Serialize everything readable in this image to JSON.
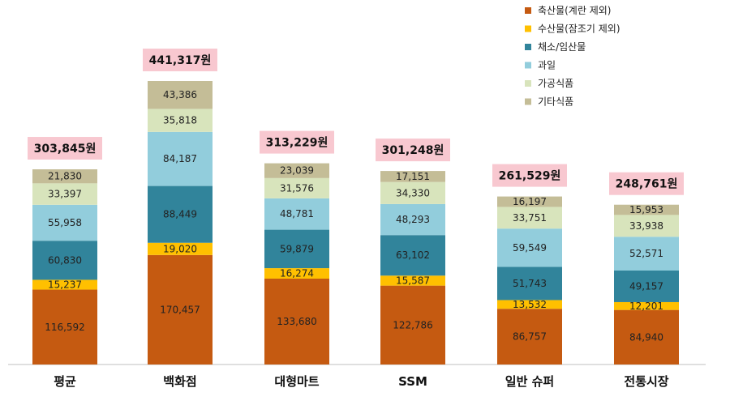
{
  "chart_data": {
    "type": "bar",
    "stacked": true,
    "categories": [
      "평균",
      "백화점",
      "대형마트",
      "SSM",
      "일반 슈퍼",
      "전통시장"
    ],
    "series": [
      {
        "name": "축산물(계란 제외)",
        "color": "#C55A11",
        "values": [
          116592,
          170457,
          133680,
          122786,
          86757,
          84940
        ]
      },
      {
        "name": "수산물(잠조기 제외)",
        "color": "#FFC000",
        "values": [
          15237,
          19020,
          16274,
          15587,
          13532,
          12201
        ]
      },
      {
        "name": "채소/임산물",
        "color": "#31849B",
        "values": [
          60830,
          88449,
          59879,
          63102,
          51743,
          49157
        ]
      },
      {
        "name": "과일",
        "color": "#92CDDC",
        "values": [
          55958,
          84187,
          48781,
          48293,
          59549,
          52571
        ]
      },
      {
        "name": "가공식품",
        "color": "#D8E4BC",
        "values": [
          33397,
          35818,
          31576,
          34330,
          33751,
          33938
        ]
      },
      {
        "name": "기타식품",
        "color": "#C4BD97",
        "values": [
          21830,
          43386,
          23039,
          17151,
          16197,
          15953
        ]
      }
    ],
    "value_labels": [
      [
        "116,592",
        "170,457",
        "133,680",
        "122,786",
        "86,757",
        "84,940"
      ],
      [
        "15,237",
        "19,020",
        "16,274",
        "15,587",
        "13,532",
        "12,201"
      ],
      [
        "60,830",
        "88,449",
        "59,879",
        "63,102",
        "51,743",
        "49,157"
      ],
      [
        "55,958",
        "84,187",
        "48,781",
        "48,293",
        "59,549",
        "52,571"
      ],
      [
        "33,397",
        "35,818",
        "31,576",
        "34,330",
        "33,751",
        "33,938"
      ],
      [
        "21,830",
        "43,386",
        "23,039",
        "17,151",
        "16,197",
        "15,953"
      ]
    ],
    "totals": [
      303845,
      441317,
      313229,
      301248,
      261529,
      248761
    ],
    "total_labels": [
      "303,845원",
      "441,317원",
      "313,229원",
      "301,248원",
      "261,529원",
      "248,761원"
    ],
    "total_label_bg": "#F8C8D0",
    "ylim": [
      0,
      441317
    ],
    "grid": false,
    "legend_position": "top-right",
    "xlabel": "",
    "ylabel": ""
  }
}
